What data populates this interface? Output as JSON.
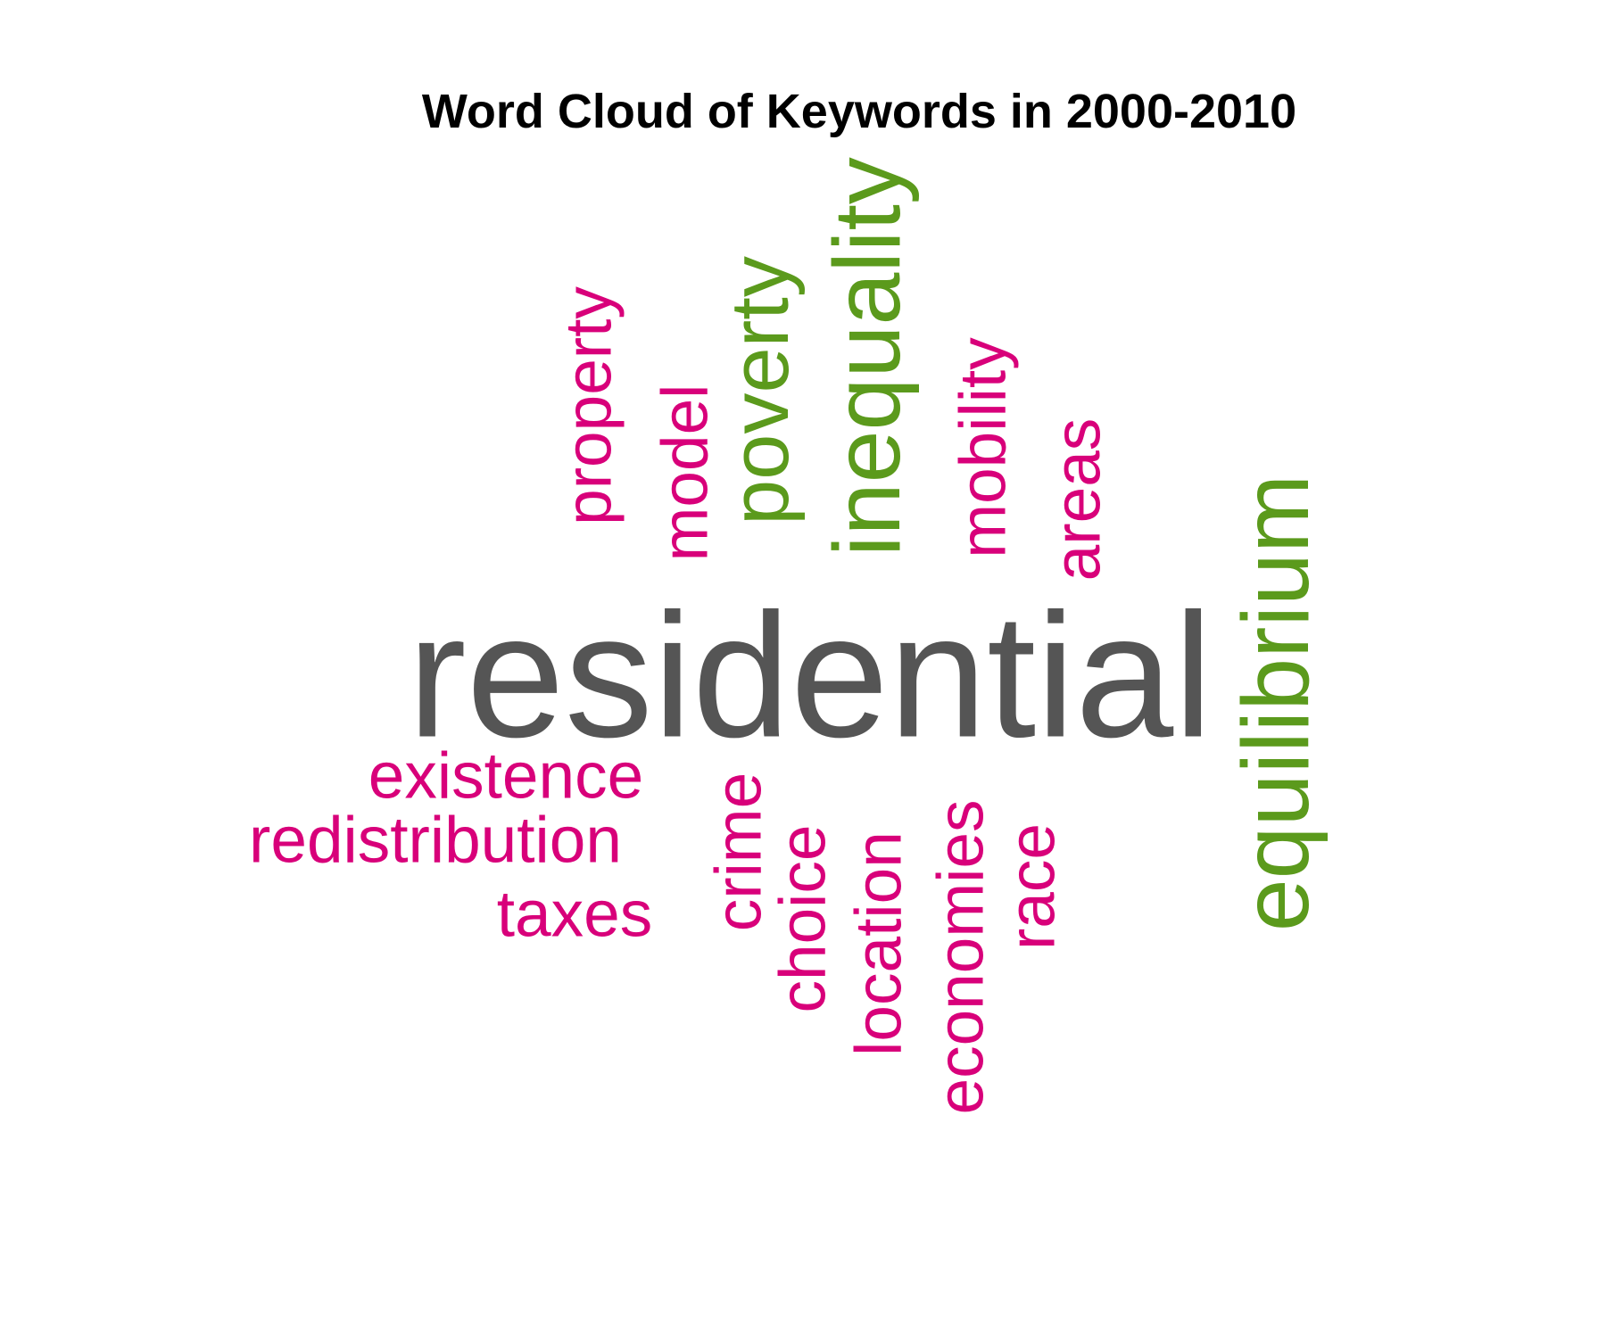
{
  "chart_data": {
    "type": "wordcloud",
    "title": "Word Cloud of Keywords in 2000-2010",
    "colors": {
      "top": "#555555",
      "second": "#5b9a1c",
      "third": "#d8007a"
    },
    "words": [
      {
        "text": "residential",
        "tier": "top",
        "orientation": "horizontal"
      },
      {
        "text": "equilibrium",
        "tier": "second",
        "orientation": "vertical"
      },
      {
        "text": "inequality",
        "tier": "second",
        "orientation": "vertical"
      },
      {
        "text": "poverty",
        "tier": "second",
        "orientation": "vertical"
      },
      {
        "text": "property",
        "tier": "third",
        "orientation": "vertical"
      },
      {
        "text": "model",
        "tier": "third",
        "orientation": "vertical"
      },
      {
        "text": "mobility",
        "tier": "third",
        "orientation": "vertical"
      },
      {
        "text": "areas",
        "tier": "third",
        "orientation": "vertical"
      },
      {
        "text": "existence",
        "tier": "third",
        "orientation": "horizontal"
      },
      {
        "text": "redistribution",
        "tier": "third",
        "orientation": "horizontal"
      },
      {
        "text": "taxes",
        "tier": "third",
        "orientation": "horizontal"
      },
      {
        "text": "crime",
        "tier": "third",
        "orientation": "vertical"
      },
      {
        "text": "choice",
        "tier": "third",
        "orientation": "vertical"
      },
      {
        "text": "location",
        "tier": "third",
        "orientation": "vertical"
      },
      {
        "text": "economies",
        "tier": "third",
        "orientation": "vertical"
      },
      {
        "text": "race",
        "tier": "third",
        "orientation": "vertical"
      }
    ]
  }
}
